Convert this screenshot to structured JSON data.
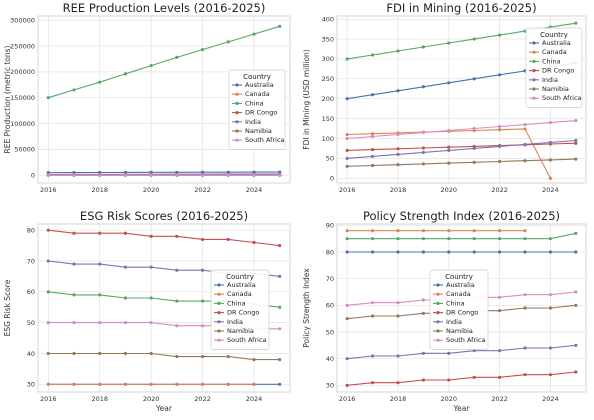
{
  "chart_data": [
    {
      "type": "line",
      "title": "REE Production Levels (2016-2025)",
      "xlabel": "",
      "ylabel": "REE Production (metric tons)",
      "x": [
        2016,
        2017,
        2018,
        2019,
        2020,
        2021,
        2022,
        2023,
        2024,
        2025
      ],
      "xticks": [
        2016,
        2018,
        2020,
        2022,
        2024
      ],
      "yticks": [
        0,
        50000,
        100000,
        150000,
        200000,
        250000,
        300000
      ],
      "ytick_labels": [
        "0",
        "50000",
        "100000",
        "150000",
        "200000",
        "250000",
        "300000"
      ],
      "ylim": [
        -15000,
        308000
      ],
      "legend": {
        "title": "Country",
        "placement": "center-right"
      },
      "grid": true,
      "series": [
        {
          "name": "Australia",
          "color": "#4c72b0",
          "values": [
            5000,
            5200,
            5400,
            5500,
            5600,
            5700,
            5800,
            5900,
            6000,
            6000
          ]
        },
        {
          "name": "Canada",
          "color": "#dd8452",
          "values": [
            500,
            500,
            500,
            500,
            500,
            500,
            500,
            500,
            500,
            500
          ]
        },
        {
          "name": "China",
          "color": "#55a868",
          "values": [
            150000,
            165000,
            180000,
            196000,
            212000,
            228000,
            243000,
            258000,
            273000,
            288000
          ]
        },
        {
          "name": "DR Congo",
          "color": "#c44e52",
          "values": [
            200,
            200,
            200,
            200,
            200,
            200,
            200,
            200,
            200,
            200
          ]
        },
        {
          "name": "India",
          "color": "#8172b3",
          "values": [
            1500,
            1600,
            1700,
            1800,
            1900,
            2000,
            2100,
            2200,
            2300,
            2400
          ]
        },
        {
          "name": "Namibia",
          "color": "#937860",
          "values": [
            100,
            100,
            100,
            100,
            100,
            100,
            100,
            100,
            100,
            100
          ]
        },
        {
          "name": "South Africa",
          "color": "#da8bc3",
          "values": [
            400,
            400,
            400,
            400,
            400,
            400,
            400,
            400,
            400,
            400
          ]
        }
      ]
    },
    {
      "type": "line",
      "title": "FDI in Mining (2016-2025)",
      "xlabel": "",
      "ylabel": "FDI in Mining (USD million)",
      "x": [
        2016,
        2017,
        2018,
        2019,
        2020,
        2021,
        2022,
        2023,
        2024,
        2025
      ],
      "xticks": [
        2016,
        2018,
        2020,
        2022,
        2024
      ],
      "yticks": [
        0,
        50,
        100,
        150,
        200,
        250,
        300,
        350,
        400
      ],
      "ytick_labels": [
        "0",
        "50",
        "100",
        "150",
        "200",
        "250",
        "300",
        "350",
        "400"
      ],
      "ylim": [
        -12,
        408
      ],
      "legend": {
        "title": "Country",
        "placement": "center-right"
      },
      "grid": true,
      "series": [
        {
          "name": "Australia",
          "color": "#4c72b0",
          "values": [
            200,
            210,
            220,
            230,
            240,
            250,
            260,
            270,
            280,
            290
          ]
        },
        {
          "name": "Canada",
          "color": "#dd8452",
          "values": [
            110,
            112,
            114,
            116,
            118,
            120,
            122,
            124,
            0,
            null
          ]
        },
        {
          "name": "China",
          "color": "#55a868",
          "values": [
            300,
            310,
            320,
            330,
            340,
            350,
            360,
            370,
            380,
            390
          ]
        },
        {
          "name": "DR Congo",
          "color": "#c44e52",
          "values": [
            70,
            72,
            74,
            76,
            78,
            80,
            82,
            84,
            86,
            88
          ]
        },
        {
          "name": "India",
          "color": "#8172b3",
          "values": [
            50,
            55,
            60,
            65,
            70,
            75,
            80,
            85,
            90,
            95
          ]
        },
        {
          "name": "Namibia",
          "color": "#937860",
          "values": [
            30,
            32,
            34,
            36,
            38,
            40,
            42,
            44,
            46,
            48
          ]
        },
        {
          "name": "South Africa",
          "color": "#da8bc3",
          "values": [
            100,
            105,
            110,
            115,
            120,
            125,
            130,
            135,
            140,
            145
          ]
        }
      ]
    },
    {
      "type": "line",
      "title": "ESG Risk Scores (2016-2025)",
      "xlabel": "Year",
      "ylabel": "ESG Risk Score",
      "x": [
        2016,
        2017,
        2018,
        2019,
        2020,
        2021,
        2022,
        2023,
        2024,
        2025
      ],
      "xticks": [
        2016,
        2018,
        2020,
        2022,
        2024
      ],
      "yticks": [
        30,
        40,
        50,
        60,
        70,
        80
      ],
      "ytick_labels": [
        "30",
        "40",
        "50",
        "60",
        "70",
        "80"
      ],
      "ylim": [
        27.5,
        82
      ],
      "legend": {
        "title": "Country",
        "placement": "center-right"
      },
      "grid": true,
      "series": [
        {
          "name": "Australia",
          "color": "#4c72b0",
          "values": [
            30,
            30,
            30,
            30,
            30,
            30,
            30,
            30,
            30,
            30
          ]
        },
        {
          "name": "Canada",
          "color": "#dd8452",
          "values": [
            30,
            30,
            30,
            30,
            30,
            30,
            30,
            30,
            30,
            null
          ]
        },
        {
          "name": "China",
          "color": "#55a868",
          "values": [
            60,
            59,
            59,
            58,
            58,
            57,
            57,
            57,
            56,
            55
          ]
        },
        {
          "name": "DR Congo",
          "color": "#c44e52",
          "values": [
            80,
            79,
            79,
            79,
            78,
            78,
            77,
            77,
            76,
            75
          ]
        },
        {
          "name": "India",
          "color": "#8172b3",
          "values": [
            70,
            69,
            69,
            68,
            68,
            67,
            67,
            66,
            66,
            65
          ]
        },
        {
          "name": "Namibia",
          "color": "#937860",
          "values": [
            40,
            40,
            40,
            40,
            40,
            39,
            39,
            39,
            38,
            38
          ]
        },
        {
          "name": "South Africa",
          "color": "#da8bc3",
          "values": [
            50,
            50,
            50,
            50,
            50,
            49,
            49,
            49,
            48,
            48
          ]
        }
      ]
    },
    {
      "type": "line",
      "title": "Policy Strength Index (2016-2025)",
      "xlabel": "Year",
      "ylabel": "Policy Strength Index",
      "x": [
        2016,
        2017,
        2018,
        2019,
        2020,
        2021,
        2022,
        2023,
        2024,
        2025
      ],
      "xticks": [
        2016,
        2018,
        2020,
        2022,
        2024
      ],
      "yticks": [
        30,
        40,
        50,
        60,
        70,
        80,
        90
      ],
      "ytick_labels": [
        "30",
        "40",
        "50",
        "60",
        "70",
        "80",
        "90"
      ],
      "ylim": [
        27.5,
        90.5
      ],
      "legend": {
        "title": "Country",
        "placement": "center-left"
      },
      "grid": true,
      "series": [
        {
          "name": "Australia",
          "color": "#4c72b0",
          "values": [
            80,
            80,
            80,
            80,
            80,
            80,
            80,
            80,
            80,
            80
          ]
        },
        {
          "name": "Canada",
          "color": "#dd8452",
          "values": [
            88,
            88,
            88,
            88,
            88,
            88,
            88,
            88,
            null,
            null
          ]
        },
        {
          "name": "China",
          "color": "#55a868",
          "values": [
            85,
            85,
            85,
            85,
            85,
            85,
            85,
            85,
            85,
            87
          ]
        },
        {
          "name": "DR Congo",
          "color": "#c44e52",
          "values": [
            30,
            31,
            31,
            32,
            32,
            33,
            33,
            34,
            34,
            35
          ]
        },
        {
          "name": "India",
          "color": "#8172b3",
          "values": [
            40,
            41,
            41,
            42,
            42,
            43,
            43,
            44,
            44,
            45
          ]
        },
        {
          "name": "Namibia",
          "color": "#937860",
          "values": [
            55,
            56,
            56,
            57,
            57,
            58,
            58,
            59,
            59,
            60
          ]
        },
        {
          "name": "South Africa",
          "color": "#da8bc3",
          "values": [
            60,
            61,
            61,
            62,
            62,
            63,
            63,
            64,
            64,
            65
          ]
        }
      ]
    }
  ]
}
